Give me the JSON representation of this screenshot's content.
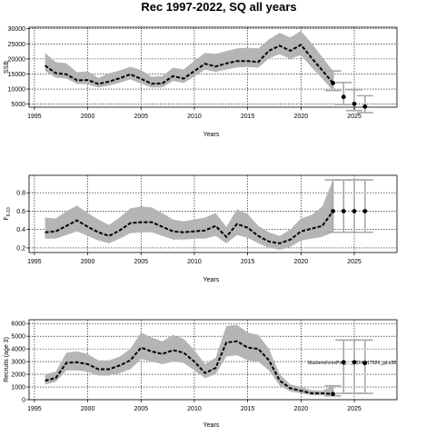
{
  "figure": {
    "title": "Rec 1997-2022, SQ all years"
  },
  "chart_data": [
    {
      "type": "line",
      "panel": "ssb",
      "xlabel": "Years",
      "ylabel": "SSB",
      "xlim": [
        1994.5,
        2029
      ],
      "ylim": [
        4000,
        30500
      ],
      "x_ticks": [
        1995,
        2000,
        2005,
        2010,
        2015,
        2020,
        2025
      ],
      "y_ticks": [
        5000,
        10000,
        15000,
        20000,
        25000,
        30000
      ],
      "grid": true,
      "series": [
        {
          "role": "median",
          "x": [
            1996,
            1997,
            1998,
            1999,
            2000,
            2001,
            2002,
            2003,
            2004,
            2005,
            2006,
            2007,
            2008,
            2009,
            2010,
            2011,
            2012,
            2013,
            2014,
            2015,
            2016,
            2017,
            2018,
            2019,
            2020,
            2021,
            2022,
            2023
          ],
          "y": [
            17800,
            15300,
            14900,
            12900,
            13000,
            11700,
            12500,
            13600,
            14900,
            13400,
            11800,
            11900,
            14300,
            13500,
            16000,
            18400,
            17500,
            18500,
            19300,
            19300,
            19000,
            22700,
            24400,
            22700,
            24700,
            20300,
            16200,
            12000
          ],
          "lower": [
            16000,
            13800,
            13500,
            11700,
            11600,
            10500,
            11200,
            12100,
            13200,
            11800,
            10500,
            10600,
            12700,
            12000,
            14200,
            16400,
            15700,
            16500,
            17200,
            17300,
            17100,
            20200,
            21600,
            20000,
            21300,
            17200,
            13500,
            9500
          ],
          "upper": [
            22000,
            19000,
            18500,
            15600,
            15900,
            13700,
            15200,
            16200,
            17400,
            16300,
            14100,
            14300,
            17100,
            16500,
            19400,
            22000,
            21700,
            22600,
            23500,
            23700,
            23500,
            26500,
            28600,
            27100,
            29300,
            25200,
            20600,
            16000
          ]
        },
        {
          "role": "projection",
          "x": [
            2024,
            2025,
            2026
          ],
          "y": [
            7400,
            5100,
            4200
          ],
          "lower": [
            4900,
            2900,
            2200
          ],
          "upper": [
            12200,
            9800,
            7800
          ]
        }
      ]
    },
    {
      "type": "line",
      "panel": "f",
      "xlabel": "Years",
      "ylabel": "F",
      "ylabel_sub": "6-10",
      "xlim": [
        1994.5,
        2029
      ],
      "ylim": [
        0.15,
        0.99
      ],
      "x_ticks": [
        1995,
        2000,
        2005,
        2010,
        2015,
        2020,
        2025
      ],
      "y_ticks": [
        0.2,
        0.4,
        0.6,
        0.8
      ],
      "grid": true,
      "series": [
        {
          "role": "median",
          "x": [
            1996,
            1997,
            1998,
            1999,
            2000,
            2001,
            2002,
            2003,
            2004,
            2005,
            2006,
            2007,
            2008,
            2009,
            2010,
            2011,
            2012,
            2013,
            2014,
            2015,
            2016,
            2017,
            2018,
            2019,
            2020,
            2021,
            2022,
            2023
          ],
          "y": [
            0.37,
            0.38,
            0.44,
            0.5,
            0.43,
            0.37,
            0.33,
            0.39,
            0.47,
            0.48,
            0.48,
            0.43,
            0.38,
            0.37,
            0.38,
            0.39,
            0.44,
            0.32,
            0.46,
            0.42,
            0.33,
            0.27,
            0.25,
            0.29,
            0.38,
            0.41,
            0.44,
            0.6
          ],
          "lower": [
            0.3,
            0.3,
            0.34,
            0.38,
            0.33,
            0.28,
            0.25,
            0.3,
            0.36,
            0.37,
            0.37,
            0.33,
            0.29,
            0.29,
            0.3,
            0.3,
            0.33,
            0.25,
            0.34,
            0.31,
            0.25,
            0.2,
            0.18,
            0.21,
            0.28,
            0.3,
            0.32,
            0.37
          ],
          "upper": [
            0.53,
            0.52,
            0.6,
            0.66,
            0.58,
            0.51,
            0.45,
            0.53,
            0.63,
            0.65,
            0.64,
            0.58,
            0.51,
            0.49,
            0.51,
            0.53,
            0.58,
            0.43,
            0.62,
            0.57,
            0.44,
            0.37,
            0.33,
            0.4,
            0.52,
            0.56,
            0.65,
            0.94
          ]
        },
        {
          "role": "projection",
          "x": [
            2024,
            2025,
            2026
          ],
          "y": [
            0.6,
            0.6,
            0.6
          ],
          "lower": [
            0.37,
            0.37,
            0.37
          ],
          "upper": [
            0.94,
            0.94,
            0.94
          ]
        }
      ]
    },
    {
      "type": "line",
      "panel": "recruits",
      "xlabel": "Years",
      "ylabel": "Recruits (age 3)",
      "annotation": "Mackerel/cmeProj_..._2024_r17924_git:e38",
      "xlim": [
        1994.5,
        2029
      ],
      "ylim": [
        0,
        6300
      ],
      "x_ticks": [
        1995,
        2000,
        2005,
        2010,
        2015,
        2020,
        2025
      ],
      "y_ticks": [
        0,
        1000,
        2000,
        3000,
        4000,
        5000,
        6000
      ],
      "grid": true,
      "series": [
        {
          "role": "median",
          "x": [
            1996,
            1997,
            1998,
            1999,
            2000,
            2001,
            2002,
            2003,
            2004,
            2005,
            2006,
            2007,
            2008,
            2009,
            2010,
            2011,
            2012,
            2013,
            2014,
            2015,
            2016,
            2017,
            2018,
            2019,
            2020,
            2021,
            2022,
            2023
          ],
          "y": [
            1500,
            1700,
            2900,
            2950,
            2800,
            2400,
            2400,
            2700,
            3100,
            4100,
            3800,
            3600,
            3900,
            3700,
            3000,
            2100,
            2500,
            4500,
            4600,
            4100,
            4000,
            3100,
            1500,
            900,
            700,
            500,
            500,
            450
          ],
          "lower": [
            1200,
            1400,
            2300,
            2300,
            2200,
            1900,
            1900,
            2100,
            2400,
            3200,
            3000,
            2800,
            3000,
            2900,
            2300,
            1700,
            2000,
            3400,
            3500,
            3100,
            3000,
            2300,
            1100,
            650,
            500,
            350,
            350,
            300
          ],
          "upper": [
            2000,
            2200,
            3700,
            3800,
            3600,
            3100,
            3100,
            3400,
            4000,
            5300,
            4900,
            4600,
            5100,
            4800,
            3900,
            2800,
            3300,
            5800,
            5900,
            5300,
            5100,
            4000,
            2000,
            1200,
            1000,
            750,
            700,
            1100
          ]
        },
        {
          "role": "projection",
          "x": [
            2024,
            2025,
            2026
          ],
          "y": [
            2950,
            2950,
            2900
          ],
          "lower": [
            500,
            500,
            500
          ],
          "upper": [
            4700,
            4700,
            4700
          ]
        }
      ]
    }
  ],
  "colors": {
    "band": "#b5b5b5",
    "line": "#000000",
    "projection_whisker": "#a8a8a8",
    "grid": "#000000"
  }
}
